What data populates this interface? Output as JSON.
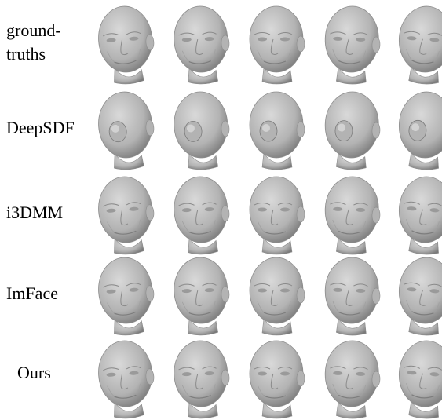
{
  "figure": {
    "rows": [
      {
        "label": "ground-\ntruths",
        "variant": "detailed"
      },
      {
        "label": "DeepSDF",
        "variant": "smooth-blob"
      },
      {
        "label": "i3DMM",
        "variant": "detailed"
      },
      {
        "label": "ImFace",
        "variant": "detailed"
      },
      {
        "label": "Ours",
        "variant": "detailed"
      }
    ],
    "columns": 5,
    "colors": {
      "background": "#ffffff",
      "mesh_light": "#d9d9d9",
      "mesh_mid": "#b3b3b3",
      "mesh_dark": "#7a7a7a",
      "text": "#000000"
    }
  }
}
